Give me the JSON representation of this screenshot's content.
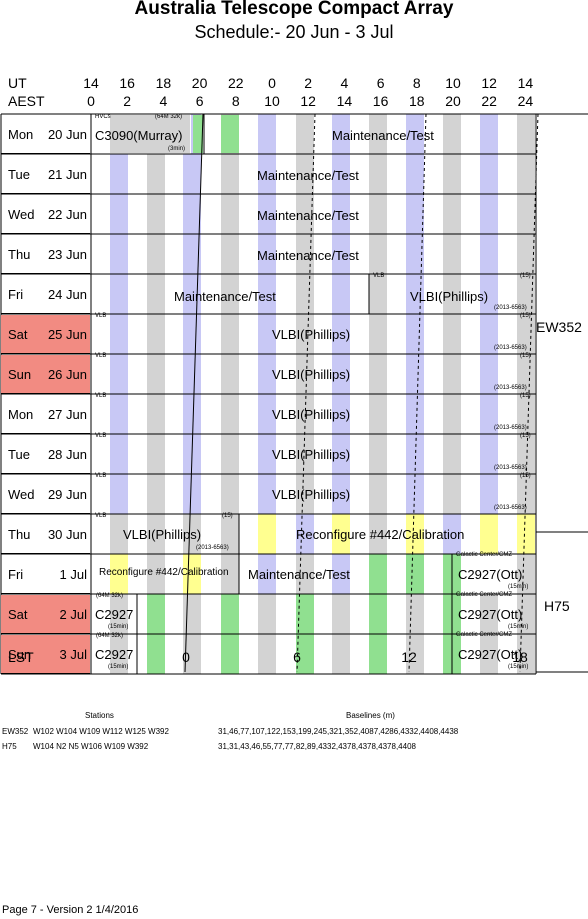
{
  "header": {
    "title": "Australia Telescope Compact Array",
    "subtitle": "Schedule:- 20 Jun - 3  Jul"
  },
  "axes": {
    "ut_label": "UT",
    "aest_label": "AEST",
    "lst_label": "LST",
    "ut_hours": [
      "14",
      "16",
      "18",
      "20",
      "22",
      "0",
      "2",
      "4",
      "6",
      "8",
      "10",
      "12",
      "14"
    ],
    "aest_hours": [
      "0",
      "2",
      "4",
      "6",
      "8",
      "10",
      "12",
      "14",
      "16",
      "18",
      "20",
      "22",
      "24"
    ],
    "lst_ticks": [
      "0",
      "6",
      "12",
      "18"
    ]
  },
  "colors": {
    "weekend": "#f28b82",
    "gray": "#d3d3d3",
    "lavender": "#c8c8f5",
    "green": "#90e090",
    "yellow": "#ffff90"
  },
  "days": [
    {
      "name": "Mon",
      "date": "20 Jun",
      "weekend": false
    },
    {
      "name": "Tue",
      "date": "21 Jun",
      "weekend": false
    },
    {
      "name": "Wed",
      "date": "22 Jun",
      "weekend": false
    },
    {
      "name": "Thu",
      "date": "23 Jun",
      "weekend": false
    },
    {
      "name": "Fri",
      "date": "24 Jun",
      "weekend": false
    },
    {
      "name": "Sat",
      "date": "25 Jun",
      "weekend": true
    },
    {
      "name": "Sun",
      "date": "26 Jun",
      "weekend": true
    },
    {
      "name": "Mon",
      "date": "27 Jun",
      "weekend": false
    },
    {
      "name": "Tue",
      "date": "28 Jun",
      "weekend": false
    },
    {
      "name": "Wed",
      "date": "29 Jun",
      "weekend": false
    },
    {
      "name": "Thu",
      "date": "30 Jun",
      "weekend": false
    },
    {
      "name": "Fri",
      "date": "1 Jul",
      "weekend": false
    },
    {
      "name": "Sat",
      "date": "2  Jul",
      "weekend": true
    },
    {
      "name": "Sun",
      "date": "3  Jul",
      "weekend": true
    }
  ],
  "blocks": {
    "mon20_a_proj": "C3090(Murray)",
    "mon20_a_tag": "HVCs",
    "mon20_a_corr": "(64M 32k)",
    "mon20_a_cycle": "(3min)",
    "mon20_b": "Maintenance/Test",
    "tue21": "Maintenance/Test",
    "wed22": "Maintenance/Test",
    "thu23": "Maintenance/Test",
    "fri24_a": "Maintenance/Test",
    "fri24_b_proj": "VLBI(Phillips)",
    "fri24_b_tag": "VLB",
    "fri24_b_n": "(15)",
    "fri24_b_corr": "(2013-6563)",
    "sat25_proj": "VLBI(Phillips)",
    "sat25_tag": "VLB",
    "sat25_n": "(15)",
    "sat25_corr": "(2013-6563)",
    "sun26_proj": "VLBI(Phillips)",
    "sun26_tag": "VLB",
    "sun26_n": "(15)",
    "sun26_corr": "(2013-6563)",
    "mon27_proj": "VLBI(Phillips)",
    "mon27_tag": "VLB",
    "mon27_n": "(15)",
    "mon27_corr": "(2013-6563)",
    "tue28_proj": "VLBI(Phillips)",
    "tue28_tag": "VLB",
    "tue28_n": "(15)",
    "tue28_corr": "(2013-6563)",
    "wed29_proj": "VLBI(Phillips)",
    "wed29_tag": "VLB",
    "wed29_n": "(15)",
    "wed29_corr": "(2013-6563)",
    "thu30_a_proj": "VLBI(Phillips)",
    "thu30_a_tag": "VLB",
    "thu30_a_n": "(15)",
    "thu30_a_corr": "(2013-6563)",
    "thu30_b": "Reconfigure #442/Calibration",
    "fri1_a": "Reconfigure #442/Calibration",
    "fri1_b": "Maintenance/Test",
    "fri1_c_proj": "C2927(Ott)",
    "fri1_c_tag": "Galactic Center/CMZ",
    "fri1_c_cycle": "(15min)",
    "sat2_a_proj": "C2927",
    "sat2_a_corr": "(64M 32k)",
    "sat2_a_cycle": "(15min)",
    "sat2_b_proj": "C2927(Ott)",
    "sat2_b_tag": "Galactic Center/CMZ",
    "sat2_b_cycle": "(15min)",
    "sun3_a_proj": "C2927",
    "sun3_a_corr": "(64M 32k)",
    "sun3_a_cycle": "(15min)",
    "sun3_b_proj": "C2927(Ott)",
    "sun3_b_tag": "Galactic Center/CMZ",
    "sun3_b_cycle": "(15min)"
  },
  "configs": {
    "first": "EW352",
    "second": "H75"
  },
  "stations": {
    "header_stations": "Stations",
    "header_baselines": "Baselines (m)",
    "rows": [
      {
        "config": "EW352",
        "stations": "W102 W104 W109 W112 W125 W392",
        "baselines": "31,46,77,107,122,153,199,245,321,352,4087,4286,4332,4408,4438"
      },
      {
        "config": "H75",
        "stations": "W104 N2 N5 W106 W109 W392",
        "baselines": "31,31,43,46,55,77,77,82,89,4332,4378,4378,4378,4408"
      }
    ]
  },
  "footer": "Page 7 - Version 2  1/4/2016"
}
